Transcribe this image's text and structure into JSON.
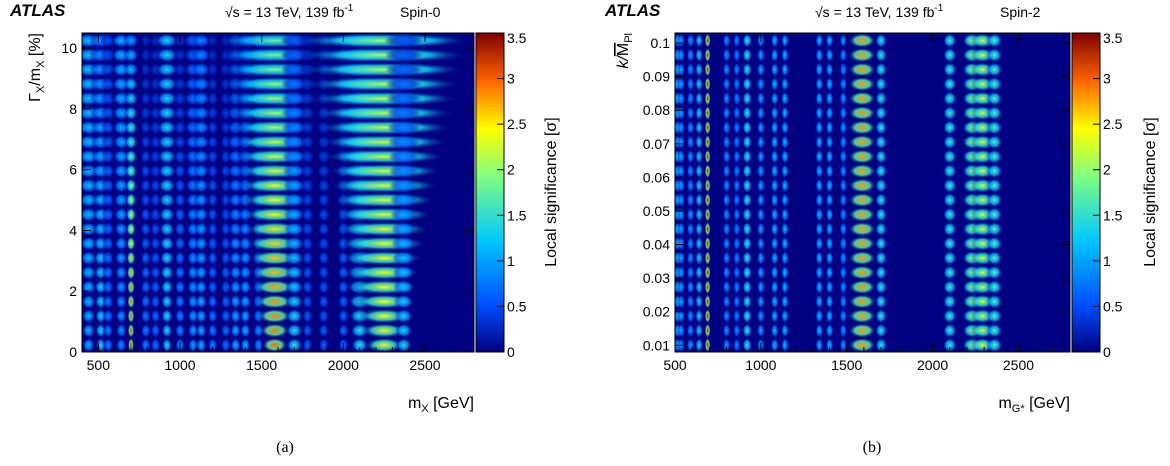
{
  "figure": {
    "colorscale": [
      "#000080",
      "#0050ff",
      "#00c8ff",
      "#80ff80",
      "#ffff00",
      "#ff6400",
      "#800000"
    ],
    "background_color": "#000080"
  },
  "chart_data": [
    {
      "type": "heatmap",
      "caption": "(a)",
      "experiment": "ATLAS",
      "energy_label": "√s = 13 TeV, 139 fb",
      "energy_sup": "-1",
      "model_label": "Spin-0",
      "xlabel": "m",
      "xlabel_sub": "X",
      "xlabel_unit": " [GeV]",
      "ylabel": "Γ",
      "ylabel_sub1": "X",
      "ylabel_mid": "/m",
      "ylabel_sub2": "X",
      "ylabel_unit": " [%]",
      "zlabel": "Local significance [σ]",
      "xlim": [
        400,
        2800
      ],
      "ylim": [
        0,
        10.5
      ],
      "zlim": [
        0,
        3.5
      ],
      "x_ticks": [
        500,
        1000,
        1500,
        2000,
        2500
      ],
      "x_tick_labels": [
        "500",
        "1000",
        "1500",
        "2000",
        "2500"
      ],
      "y_ticks": [
        0,
        2,
        4,
        6,
        8,
        10
      ],
      "y_tick_labels": [
        "0",
        "2",
        "4",
        "6",
        "8",
        "10"
      ],
      "z_ticks": [
        0,
        0.5,
        1,
        1.5,
        2,
        2.5,
        3,
        3.5
      ],
      "z_tick_labels": [
        "0",
        "0.5",
        "1",
        "1.5",
        "2",
        "2.5",
        "3",
        "3.5"
      ],
      "peaks": [
        {
          "mass": 440,
          "z_narrow": 1.2,
          "z_wide": 1.3,
          "w0": 6,
          "w1": 14
        },
        {
          "mass": 515,
          "z_narrow": 1.5,
          "z_wide": 1.0,
          "w0": 5,
          "w1": 12
        },
        {
          "mass": 560,
          "z_narrow": 0.9,
          "z_wide": 0.5,
          "w0": 5,
          "w1": 8
        },
        {
          "mass": 640,
          "z_narrow": 1.0,
          "z_wide": 1.2,
          "w0": 5,
          "w1": 10
        },
        {
          "mass": 700,
          "z_narrow": 3.3,
          "z_wide": 1.0,
          "w0": 3,
          "w1": 8
        },
        {
          "mass": 790,
          "z_narrow": 0.9,
          "z_wide": 0.3,
          "w0": 5,
          "w1": 6
        },
        {
          "mass": 850,
          "z_narrow": 0.8,
          "z_wide": 0.3,
          "w0": 5,
          "w1": 6
        },
        {
          "mass": 920,
          "z_narrow": 1.5,
          "z_wide": 1.4,
          "w0": 5,
          "w1": 12
        },
        {
          "mass": 1000,
          "z_narrow": 1.0,
          "z_wide": 0.3,
          "w0": 5,
          "w1": 7
        },
        {
          "mass": 1080,
          "z_narrow": 1.1,
          "z_wide": 0.7,
          "w0": 5,
          "w1": 10
        },
        {
          "mass": 1130,
          "z_narrow": 1.2,
          "z_wide": 0.9,
          "w0": 5,
          "w1": 10
        },
        {
          "mass": 1200,
          "z_narrow": 0.9,
          "z_wide": 0.3,
          "w0": 5,
          "w1": 6
        },
        {
          "mass": 1280,
          "z_narrow": 0.8,
          "z_wide": 0.3,
          "w0": 5,
          "w1": 6
        },
        {
          "mass": 1340,
          "z_narrow": 1.2,
          "z_wide": 0.6,
          "w0": 5,
          "w1": 10
        },
        {
          "mass": 1400,
          "z_narrow": 1.2,
          "z_wide": 0.6,
          "w0": 5,
          "w1": 10
        },
        {
          "mass": 1480,
          "z_narrow": 1.0,
          "z_wide": 0.4,
          "w0": 5,
          "w1": 8
        },
        {
          "mass": 1580,
          "z_narrow": 3.0,
          "z_wide": 1.8,
          "w0": 12,
          "w1": 55
        },
        {
          "mass": 1700,
          "z_narrow": 1.6,
          "z_wide": 0.6,
          "w0": 8,
          "w1": 14
        },
        {
          "mass": 1780,
          "z_narrow": 0.7,
          "z_wide": 0.3,
          "w0": 5,
          "w1": 8
        },
        {
          "mass": 1880,
          "z_narrow": 0.7,
          "z_wide": 0.3,
          "w0": 5,
          "w1": 8
        },
        {
          "mass": 2000,
          "z_narrow": 0.8,
          "z_wide": 0.4,
          "w0": 5,
          "w1": 8
        },
        {
          "mass": 2100,
          "z_narrow": 1.6,
          "z_wide": 1.0,
          "w0": 8,
          "w1": 30
        },
        {
          "mass": 2250,
          "z_narrow": 2.5,
          "z_wide": 2.1,
          "w0": 18,
          "w1": 90
        },
        {
          "mass": 2370,
          "z_narrow": 1.5,
          "z_wide": 0.6,
          "w0": 8,
          "w1": 20
        }
      ]
    },
    {
      "type": "heatmap",
      "caption": "(b)",
      "experiment": "ATLAS",
      "energy_label": "√s = 13 TeV, 139 fb",
      "energy_sup": "-1",
      "model_label": "Spin-2",
      "xlabel": "m",
      "xlabel_sub": "G*",
      "xlabel_unit": " [GeV]",
      "ylabel": "k/",
      "ylabel_sub1": "",
      "ylabel_mid": "M",
      "ylabel_sub2": "Pl",
      "ylabel_unit": "",
      "zlabel": "Local significance [σ]",
      "xlim": [
        500,
        2800
      ],
      "ylim": [
        0.008,
        0.103
      ],
      "zlim": [
        0,
        3.5
      ],
      "x_ticks": [
        500,
        1000,
        1500,
        2000,
        2500
      ],
      "x_tick_labels": [
        "500",
        "1000",
        "1500",
        "2000",
        "2500"
      ],
      "y_ticks": [
        0.01,
        0.02,
        0.03,
        0.04,
        0.05,
        0.06,
        0.07,
        0.08,
        0.09,
        0.1
      ],
      "y_tick_labels": [
        "0.01",
        "0.02",
        "0.03",
        "0.04",
        "0.05",
        "0.06",
        "0.07",
        "0.08",
        "0.09",
        "0.1"
      ],
      "z_ticks": [
        0,
        0.5,
        1,
        1.5,
        2,
        2.5,
        3,
        3.5
      ],
      "z_tick_labels": [
        "0",
        "0.5",
        "1",
        "1.5",
        "2",
        "2.5",
        "3",
        "3.5"
      ],
      "peaks": [
        {
          "mass": 515,
          "z_narrow": 1.3,
          "z_wide": 1.3,
          "w0": 4,
          "w1": 4
        },
        {
          "mass": 535,
          "z_narrow": 1.1,
          "z_wide": 1.1,
          "w0": 4,
          "w1": 4
        },
        {
          "mass": 590,
          "z_narrow": 1.0,
          "z_wide": 1.0,
          "w0": 4,
          "w1": 4
        },
        {
          "mass": 640,
          "z_narrow": 1.4,
          "z_wide": 1.4,
          "w0": 4,
          "w1": 4
        },
        {
          "mass": 690,
          "z_narrow": 3.3,
          "z_wide": 3.3,
          "w0": 3,
          "w1": 3
        },
        {
          "mass": 800,
          "z_narrow": 1.0,
          "z_wide": 1.0,
          "w0": 4,
          "w1": 4
        },
        {
          "mass": 860,
          "z_narrow": 0.9,
          "z_wide": 0.9,
          "w0": 4,
          "w1": 4
        },
        {
          "mass": 920,
          "z_narrow": 1.6,
          "z_wide": 1.6,
          "w0": 5,
          "w1": 5
        },
        {
          "mass": 1000,
          "z_narrow": 1.1,
          "z_wide": 1.1,
          "w0": 4,
          "w1": 4
        },
        {
          "mass": 1080,
          "z_narrow": 1.2,
          "z_wide": 1.2,
          "w0": 4,
          "w1": 4
        },
        {
          "mass": 1140,
          "z_narrow": 1.2,
          "z_wide": 1.2,
          "w0": 4,
          "w1": 4
        },
        {
          "mass": 1340,
          "z_narrow": 1.2,
          "z_wide": 1.2,
          "w0": 4,
          "w1": 4
        },
        {
          "mass": 1400,
          "z_narrow": 1.2,
          "z_wide": 1.2,
          "w0": 4,
          "w1": 4
        },
        {
          "mass": 1480,
          "z_narrow": 1.0,
          "z_wide": 1.0,
          "w0": 4,
          "w1": 4
        },
        {
          "mass": 1590,
          "z_narrow": 2.8,
          "z_wide": 2.8,
          "w0": 14,
          "w1": 14
        },
        {
          "mass": 1700,
          "z_narrow": 1.6,
          "z_wide": 1.6,
          "w0": 6,
          "w1": 6
        },
        {
          "mass": 2100,
          "z_narrow": 1.7,
          "z_wide": 1.7,
          "w0": 7,
          "w1": 7
        },
        {
          "mass": 2230,
          "z_narrow": 2.2,
          "z_wide": 2.2,
          "w0": 10,
          "w1": 10
        },
        {
          "mass": 2290,
          "z_narrow": 2.3,
          "z_wide": 2.3,
          "w0": 12,
          "w1": 12
        },
        {
          "mass": 2360,
          "z_narrow": 1.8,
          "z_wide": 1.8,
          "w0": 8,
          "w1": 8
        }
      ]
    }
  ]
}
